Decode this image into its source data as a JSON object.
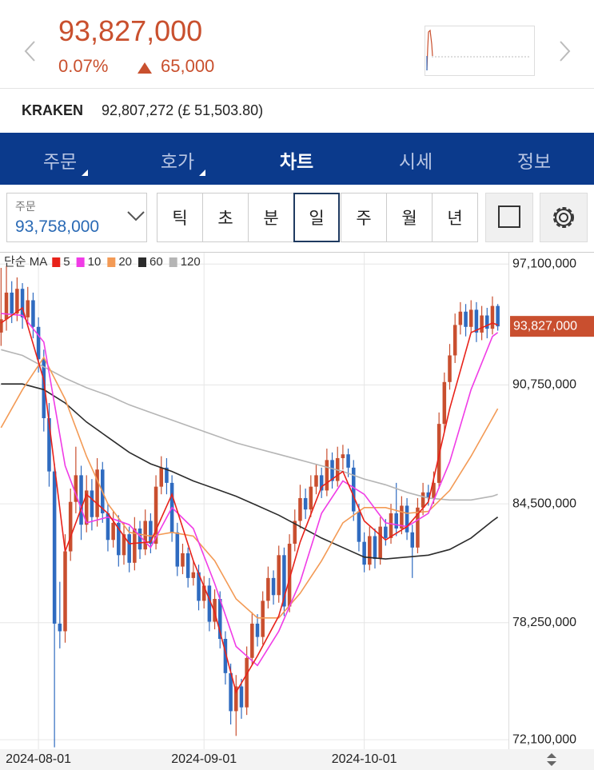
{
  "header": {
    "price": "93,827,000",
    "change_pct": "0.07%",
    "change": "65,000"
  },
  "exchange": {
    "name": "KRAKEN",
    "price": "92,807,272 (£ 51,503.80)"
  },
  "tabs": [
    "주문",
    "호가",
    "차트",
    "시세",
    "정보"
  ],
  "order": {
    "label": "주문",
    "price": "93,758,000"
  },
  "periods": [
    "틱",
    "초",
    "분",
    "일",
    "주",
    "월",
    "년"
  ],
  "chart_data": {
    "type": "candlestick",
    "legend_title": "단순 MA",
    "up_color": "#c94f2f",
    "down_color": "#2f6bc0",
    "grid": true,
    "xlim": [
      -0.2,
      95
    ],
    "ylim": [
      71600000,
      97700000
    ],
    "yticks": [
      {
        "value": 97100000,
        "label": "97,100,000"
      },
      {
        "value": 90750000,
        "label": "90,750,000"
      },
      {
        "value": 84500000,
        "label": "84,500,000"
      },
      {
        "value": 78250000,
        "label": "78,250,000"
      },
      {
        "value": 72100000,
        "label": "72,100,000"
      }
    ],
    "xticks": [
      {
        "value": 7,
        "label": "2024-08-01"
      },
      {
        "value": 38,
        "label": "2024-09-01"
      },
      {
        "value": 68,
        "label": "2024-10-01"
      }
    ],
    "last_price": {
      "value": 93827000,
      "label": "93,827,000"
    },
    "x": [
      0,
      1,
      2,
      3,
      4,
      5,
      6,
      7,
      8,
      9,
      10,
      11,
      12,
      13,
      14,
      15,
      16,
      17,
      18,
      19,
      20,
      21,
      22,
      23,
      24,
      25,
      26,
      27,
      28,
      29,
      30,
      31,
      32,
      33,
      34,
      35,
      36,
      37,
      38,
      39,
      40,
      41,
      42,
      43,
      44,
      45,
      46,
      47,
      48,
      49,
      50,
      51,
      52,
      53,
      54,
      55,
      56,
      57,
      58,
      59,
      60,
      61,
      62,
      63,
      64,
      65,
      66,
      67,
      68,
      69,
      70,
      71,
      72,
      73,
      74,
      75,
      76,
      77,
      78,
      79,
      80,
      81,
      82,
      83,
      84,
      85,
      86,
      87,
      88,
      89,
      90,
      91,
      92,
      93
    ],
    "candles": [
      [
        93500000,
        96900000,
        92800000,
        94200000
      ],
      [
        94200000,
        97000000,
        93600000,
        95600000
      ],
      [
        95600000,
        96200000,
        94000000,
        94500000
      ],
      [
        94500000,
        96400000,
        94100000,
        95800000
      ],
      [
        95800000,
        96100000,
        93700000,
        94300000
      ],
      [
        94300000,
        95900000,
        93900000,
        95200000
      ],
      [
        95200000,
        95600000,
        93200000,
        93800000
      ],
      [
        93800000,
        94300000,
        91400000,
        92100000
      ],
      [
        92100000,
        92600000,
        88300000,
        89000000
      ],
      [
        89000000,
        89800000,
        85400000,
        86200000
      ],
      [
        86200000,
        86600000,
        71700000,
        78200000
      ],
      [
        78200000,
        80400000,
        76900000,
        77800000
      ],
      [
        77800000,
        82900000,
        77200000,
        82000000
      ],
      [
        82000000,
        85300000,
        81500000,
        84600000
      ],
      [
        84600000,
        87500000,
        84000000,
        86000000
      ],
      [
        86000000,
        86500000,
        82600000,
        83400000
      ],
      [
        83400000,
        86000000,
        83000000,
        85200000
      ],
      [
        85200000,
        85800000,
        83100000,
        83800000
      ],
      [
        83800000,
        86900000,
        83300000,
        86300000
      ],
      [
        86300000,
        86700000,
        83500000,
        84000000
      ],
      [
        84000000,
        84500000,
        82000000,
        82600000
      ],
      [
        82600000,
        84100000,
        82200000,
        83500000
      ],
      [
        83500000,
        83900000,
        81200000,
        81800000
      ],
      [
        81800000,
        83500000,
        81300000,
        82900000
      ],
      [
        82900000,
        83300000,
        80900000,
        81400000
      ],
      [
        81400000,
        83800000,
        81000000,
        83200000
      ],
      [
        83200000,
        83600000,
        81600000,
        82100000
      ],
      [
        82100000,
        84200000,
        81800000,
        83600000
      ],
      [
        83600000,
        84000000,
        81900000,
        82400000
      ],
      [
        82400000,
        86000000,
        82100000,
        85400000
      ],
      [
        85400000,
        87000000,
        85000000,
        86400000
      ],
      [
        86400000,
        86900000,
        85000000,
        85600000
      ],
      [
        85600000,
        86000000,
        82500000,
        83000000
      ],
      [
        83000000,
        83500000,
        80700000,
        81200000
      ],
      [
        81200000,
        82400000,
        80800000,
        81900000
      ],
      [
        81900000,
        82200000,
        80100000,
        80600000
      ],
      [
        80600000,
        81500000,
        80200000,
        80900000
      ],
      [
        80900000,
        81300000,
        78900000,
        79400000
      ],
      [
        79400000,
        80700000,
        79000000,
        80200000
      ],
      [
        80200000,
        80600000,
        77800000,
        78300000
      ],
      [
        78300000,
        80000000,
        77900000,
        79500000
      ],
      [
        79500000,
        79900000,
        76900000,
        77400000
      ],
      [
        77400000,
        77800000,
        75000000,
        75600000
      ],
      [
        75600000,
        76100000,
        72900000,
        73600000
      ],
      [
        73600000,
        75500000,
        72300000,
        74900000
      ],
      [
        74900000,
        75300000,
        73200000,
        73800000
      ],
      [
        73800000,
        77000000,
        73400000,
        76400000
      ],
      [
        76400000,
        78800000,
        76000000,
        78200000
      ],
      [
        78200000,
        78700000,
        77000000,
        77500000
      ],
      [
        77500000,
        79900000,
        77100000,
        79400000
      ],
      [
        79400000,
        81200000,
        79000000,
        80600000
      ],
      [
        80600000,
        81000000,
        79200000,
        79700000
      ],
      [
        79700000,
        82300000,
        79300000,
        81800000
      ],
      [
        81800000,
        82200000,
        78600000,
        79100000
      ],
      [
        79100000,
        82900000,
        78800000,
        82400000
      ],
      [
        82400000,
        84200000,
        82000000,
        83600000
      ],
      [
        83600000,
        85500000,
        83200000,
        84800000
      ],
      [
        84800000,
        85300000,
        83700000,
        84200000
      ],
      [
        84200000,
        86000000,
        83800000,
        85400000
      ],
      [
        85400000,
        86600000,
        85000000,
        86000000
      ],
      [
        86000000,
        86400000,
        84800000,
        85200000
      ],
      [
        85200000,
        87400000,
        84900000,
        86800000
      ],
      [
        86800000,
        87200000,
        85300000,
        85700000
      ],
      [
        85700000,
        87500000,
        85400000,
        86900000
      ],
      [
        86900000,
        87600000,
        86300000,
        87100000
      ],
      [
        87100000,
        87400000,
        85900000,
        86400000
      ],
      [
        86400000,
        86800000,
        83600000,
        84100000
      ],
      [
        84100000,
        84500000,
        82000000,
        82500000
      ],
      [
        82500000,
        83000000,
        80900000,
        81300000
      ],
      [
        81300000,
        83300000,
        81000000,
        82800000
      ],
      [
        82800000,
        83200000,
        81100000,
        81600000
      ],
      [
        81600000,
        83800000,
        81300000,
        83300000
      ],
      [
        83300000,
        83700000,
        82300000,
        82700000
      ],
      [
        82700000,
        84500000,
        82400000,
        84000000
      ],
      [
        84000000,
        85600000,
        82800000,
        83200000
      ],
      [
        83200000,
        84900000,
        82900000,
        84400000
      ],
      [
        84400000,
        84800000,
        82600000,
        83000000
      ],
      [
        83000000,
        83400000,
        80600000,
        82200000
      ],
      [
        82200000,
        84800000,
        81900000,
        84300000
      ],
      [
        84300000,
        85600000,
        83900000,
        85100000
      ],
      [
        85100000,
        85500000,
        84400000,
        84800000
      ],
      [
        84800000,
        86200000,
        84500000,
        85600000
      ],
      [
        85600000,
        89300000,
        85300000,
        88700000
      ],
      [
        88700000,
        91400000,
        88300000,
        90900000
      ],
      [
        90900000,
        92900000,
        90500000,
        92300000
      ],
      [
        92300000,
        94500000,
        91900000,
        93900000
      ],
      [
        93900000,
        95100000,
        93400000,
        94600000
      ],
      [
        94600000,
        95000000,
        93300000,
        93800000
      ],
      [
        93800000,
        95200000,
        93500000,
        94700000
      ],
      [
        94700000,
        95100000,
        93000000,
        93500000
      ],
      [
        93500000,
        94900000,
        93100000,
        94400000
      ],
      [
        94400000,
        94800000,
        93200000,
        93700000
      ],
      [
        93700000,
        95400000,
        93400000,
        94900000
      ],
      [
        94900000,
        95000000,
        93600000,
        93827000
      ]
    ],
    "series": [
      {
        "name": "5",
        "color": "#e8221a",
        "x": [
          0,
          4,
          8,
          12,
          16,
          20,
          24,
          28,
          32,
          36,
          40,
          44,
          48,
          52,
          56,
          60,
          64,
          68,
          72,
          76,
          80,
          84,
          88,
          92,
          93
        ],
        "values": [
          94000000,
          94800000,
          91000000,
          82000000,
          85000000,
          84000000,
          82400000,
          82500000,
          85000000,
          81500000,
          78800000,
          74600000,
          76500000,
          78600000,
          82500000,
          85400000,
          86200000,
          83600000,
          82600000,
          83300000,
          84600000,
          89500000,
          93500000,
          94000000,
          93900000
        ]
      },
      {
        "name": "10",
        "color": "#f03ce6",
        "x": [
          0,
          4,
          8,
          12,
          16,
          20,
          24,
          28,
          32,
          36,
          40,
          44,
          48,
          52,
          56,
          60,
          64,
          68,
          72,
          76,
          80,
          84,
          88,
          92,
          93
        ],
        "values": [
          94500000,
          94400000,
          93000000,
          86500000,
          83500000,
          83800000,
          83400000,
          82200000,
          84300000,
          83200000,
          80300000,
          77000000,
          76000000,
          77800000,
          80400000,
          84000000,
          85700000,
          85000000,
          83500000,
          83300000,
          84000000,
          86700000,
          90500000,
          93300000,
          93500000
        ]
      },
      {
        "name": "20",
        "color": "#f39a55",
        "x": [
          0,
          4,
          8,
          12,
          16,
          20,
          24,
          28,
          32,
          36,
          40,
          44,
          48,
          52,
          56,
          60,
          64,
          68,
          72,
          76,
          80,
          84,
          88,
          92,
          93
        ],
        "values": [
          88500000,
          90500000,
          92200000,
          90000000,
          87000000,
          84500000,
          83000000,
          82800000,
          83000000,
          82800000,
          81500000,
          79500000,
          78500000,
          78500000,
          79800000,
          81500000,
          83500000,
          84300000,
          84300000,
          84000000,
          84100000,
          85200000,
          87000000,
          89000000,
          89500000
        ]
      },
      {
        "name": "60",
        "color": "#2b2b2b",
        "x": [
          0,
          4,
          8,
          12,
          16,
          20,
          24,
          28,
          32,
          36,
          40,
          44,
          48,
          52,
          56,
          60,
          64,
          68,
          72,
          76,
          80,
          84,
          88,
          92,
          93
        ],
        "values": [
          90800000,
          90800000,
          90500000,
          89800000,
          88800000,
          88000000,
          87200000,
          86600000,
          86200000,
          85700000,
          85300000,
          84900000,
          84400000,
          83900000,
          83300000,
          82700000,
          82200000,
          81700000,
          81600000,
          81700000,
          81800000,
          82100000,
          82700000,
          83600000,
          83800000
        ]
      },
      {
        "name": "120",
        "color": "#b5b5b5",
        "x": [
          0,
          4,
          8,
          12,
          16,
          20,
          24,
          28,
          32,
          36,
          40,
          44,
          48,
          52,
          56,
          60,
          64,
          68,
          72,
          76,
          80,
          84,
          88,
          92,
          93
        ],
        "values": [
          92600000,
          92300000,
          91700000,
          91100000,
          90600000,
          90200000,
          89700000,
          89300000,
          88900000,
          88500000,
          88100000,
          87700000,
          87400000,
          87100000,
          86800000,
          86500000,
          86200000,
          85800000,
          85500000,
          85100000,
          84800000,
          84700000,
          84700000,
          84900000,
          85000000
        ]
      }
    ]
  }
}
